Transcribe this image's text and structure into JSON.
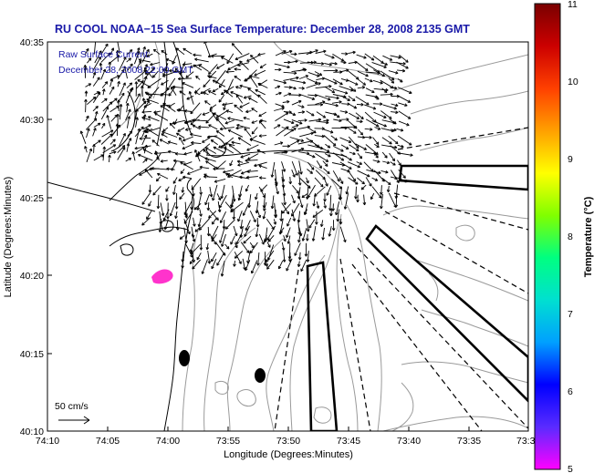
{
  "title": "RU COOL  NOAA−15  Sea Surface Temperature:  December 28, 2008 2135 GMT",
  "annotation": {
    "line1": "Raw Surface Current:",
    "line2": "December 28, 2008 22:00 GMT"
  },
  "x_axis": {
    "label": "Longitude (Degrees:Minutes)",
    "ticks": [
      "74:10",
      "74:05",
      "74:00",
      "73:55",
      "73:50",
      "73:45",
      "73:40",
      "73:35",
      "73:3"
    ]
  },
  "y_axis": {
    "label": "Latitude (Degrees:Minutes)",
    "ticks": [
      "40:35",
      "40:30",
      "40:25",
      "40:20",
      "40:15",
      "40:10"
    ]
  },
  "scale_bar": {
    "label": "50 cm/s"
  },
  "colorbar": {
    "label": "Temperature (°C)",
    "ticks": [
      "11",
      "10",
      "9",
      "8",
      "7",
      "6",
      "5"
    ],
    "colors": [
      "#ff00ff",
      "#5a2bff",
      "#0000ff",
      "#00a0ff",
      "#00e0d0",
      "#00ff80",
      "#80ff00",
      "#ffff00",
      "#ffa000",
      "#ff4000",
      "#cc0000",
      "#7a0000"
    ]
  },
  "map_colors": {
    "coast": "#000000",
    "bathymetry": "#9a9a9a",
    "vectors": "#000000",
    "sst_patch": "#ff33cc"
  }
}
